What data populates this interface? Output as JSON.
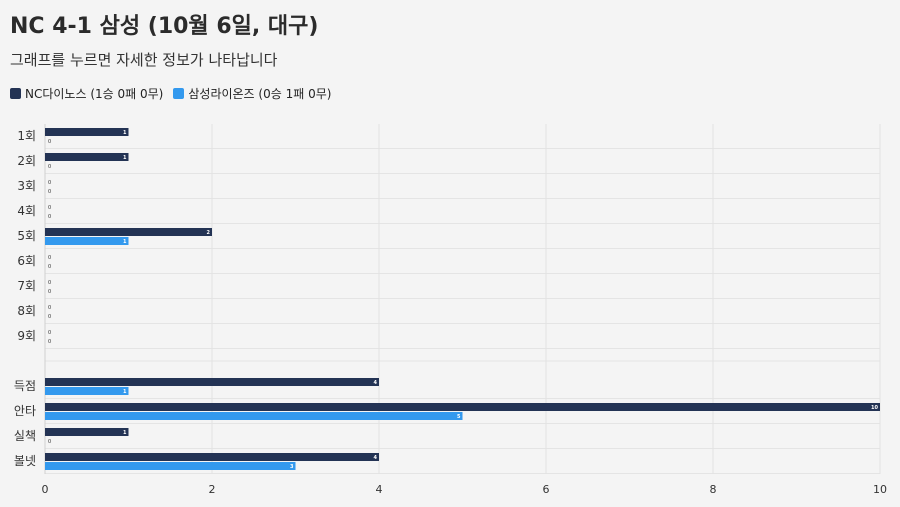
{
  "title": "NC 4-1 삼성 (10월 6일, 대구)",
  "subtitle": "그래프를 누르면 자세한 정보가 나타납니다",
  "legend": [
    {
      "label": "NC다이노스 (1승 0패 0무)",
      "color": "#233354"
    },
    {
      "label": "삼성라이온즈 (0승 1패 0무)",
      "color": "#3399ee"
    }
  ],
  "chart_data": {
    "type": "bar",
    "orientation": "horizontal",
    "title": "NC 4-1 삼성 (10월 6일, 대구)",
    "categories": [
      "1회",
      "2회",
      "3회",
      "4회",
      "5회",
      "6회",
      "7회",
      "8회",
      "9회",
      "득점",
      "안타",
      "실책",
      "볼넷"
    ],
    "series": [
      {
        "name": "NC다이노스 (1승 0패 0무)",
        "color": "#233354",
        "values": [
          1,
          1,
          0,
          0,
          2,
          0,
          0,
          0,
          0,
          4,
          10,
          1,
          4
        ]
      },
      {
        "name": "삼성라이온즈 (0승 1패 0무)",
        "color": "#3399ee",
        "values": [
          0,
          0,
          0,
          0,
          1,
          0,
          0,
          0,
          0,
          1,
          5,
          0,
          3
        ]
      }
    ],
    "xlim": [
      0,
      10
    ],
    "xticks": [
      0,
      2,
      4,
      6,
      8,
      10
    ],
    "grid": true,
    "legend_position": "top-left"
  }
}
